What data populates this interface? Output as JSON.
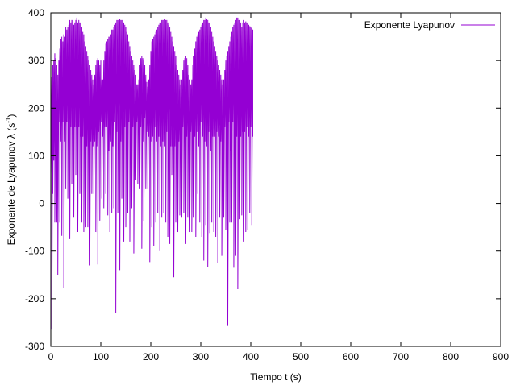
{
  "chart_data": {
    "type": "line",
    "title": "",
    "xlabel": "Tiempo t (s)",
    "ylabel_main": "Exponente de Lyapunov λ (s",
    "ylabel_sup": "-1",
    "ylabel_close": ")",
    "xlim": [
      0,
      900
    ],
    "ylim": [
      -300,
      400
    ],
    "xticks": [
      0,
      100,
      200,
      300,
      400,
      500,
      600,
      700,
      800,
      900
    ],
    "yticks": [
      -300,
      -200,
      -100,
      0,
      100,
      200,
      300,
      400
    ],
    "grid": false,
    "legend_position": "top-right",
    "series": [
      {
        "name": "Exponente Lyapunov",
        "color": "#9400d3",
        "sample_step": 2,
        "min_values": [
          60,
          -265,
          20,
          90,
          -40,
          140,
          -40,
          -150,
          170,
          -40,
          130,
          -68,
          170,
          -178,
          130,
          30,
          170,
          10,
          130,
          -75,
          160,
          40,
          160,
          -30,
          160,
          60,
          160,
          -60,
          160,
          20,
          140,
          -40,
          140,
          -60,
          150,
          -50,
          120,
          -50,
          120,
          -130,
          130,
          20,
          120,
          20,
          130,
          -60,
          120,
          -128,
          150,
          -36,
          170,
          10,
          140,
          -10,
          160,
          20,
          160,
          -25,
          110,
          -60,
          130,
          -20,
          120,
          -10,
          170,
          -230,
          150,
          -20,
          170,
          -140,
          130,
          10,
          150,
          -80,
          160,
          -50,
          150,
          -20,
          170,
          -80,
          140,
          -10,
          160,
          -105,
          190,
          50,
          170,
          40,
          150,
          30,
          160,
          -95,
          130,
          -38,
          180,
          30,
          150,
          30,
          140,
          -123,
          130,
          -50,
          140,
          -90,
          160,
          -40,
          130,
          -20,
          140,
          -100,
          120,
          -30,
          130,
          -20,
          120,
          -40,
          150,
          -70,
          160,
          -85,
          120,
          60,
          120,
          -155,
          120,
          -40,
          120,
          -60,
          130,
          -25,
          150,
          -30,
          160,
          -20,
          160,
          -85,
          140,
          -30,
          160,
          -60,
          150,
          -60,
          140,
          -30,
          140,
          -70,
          150,
          20,
          120,
          -40,
          170,
          -70,
          140,
          -120,
          130,
          -45,
          120,
          -133,
          150,
          -62,
          110,
          -40,
          140,
          -60,
          140,
          -70,
          150,
          -125,
          140,
          -30,
          130,
          -110,
          160,
          -30,
          160,
          -55,
          180,
          -257,
          170,
          -40,
          110,
          -40,
          170,
          -135,
          110,
          -110,
          140,
          -180,
          130,
          -33,
          140,
          -25,
          150,
          -80,
          150,
          -60,
          160,
          -55,
          140,
          -20,
          160,
          -45,
          140,
          -45,
          160,
          60
        ],
        "max_values": [
          270,
          265,
          290,
          300,
          315,
          305,
          290,
          270,
          300,
          325,
          345,
          350,
          340,
          355,
          350,
          370,
          365,
          370,
          375,
          385,
          380,
          385,
          385,
          375,
          380,
          385,
          390,
          380,
          385,
          380,
          380,
          370,
          360,
          355,
          340,
          330,
          320,
          310,
          300,
          290,
          280,
          270,
          260,
          250,
          270,
          290,
          300,
          305,
          300,
          290,
          300,
          260,
          260,
          300,
          320,
          335,
          340,
          345,
          350,
          350,
          355,
          365,
          365,
          370,
          375,
          380,
          385,
          385,
          385,
          388,
          385,
          385,
          385,
          380,
          375,
          370,
          360,
          355,
          340,
          330,
          320,
          310,
          300,
          290,
          280,
          270,
          250,
          250,
          260,
          290,
          305,
          310,
          305,
          300,
          290,
          270,
          255,
          245,
          260,
          290,
          320,
          340,
          345,
          350,
          355,
          360,
          365,
          370,
          375,
          380,
          380,
          385,
          385,
          385,
          388,
          385,
          385,
          380,
          375,
          370,
          360,
          350,
          340,
          330,
          320,
          310,
          290,
          280,
          270,
          260,
          250,
          260,
          280,
          300,
          305,
          310,
          305,
          290,
          270,
          260,
          250,
          260,
          290,
          310,
          325,
          340,
          350,
          355,
          360,
          365,
          370,
          375,
          380,
          385,
          385,
          390,
          388,
          385,
          380,
          378,
          370,
          360,
          350,
          340,
          330,
          320,
          310,
          300,
          290,
          280,
          270,
          260,
          250,
          260,
          280,
          300,
          310,
          320,
          330,
          340,
          350,
          360,
          370,
          375,
          380,
          385,
          390,
          390,
          385,
          385,
          380,
          370,
          380,
          385,
          380,
          382,
          380,
          378,
          375,
          372,
          370,
          368,
          365
        ]
      }
    ]
  }
}
